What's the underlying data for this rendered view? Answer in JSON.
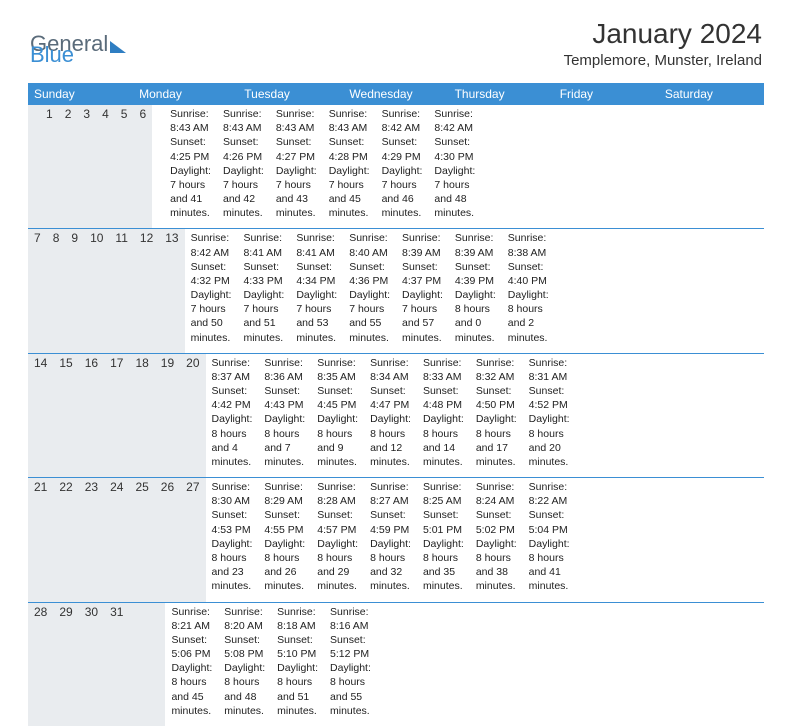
{
  "brand": {
    "part1": "General",
    "part2": "Blue"
  },
  "title": "January 2024",
  "location": "Templemore, Munster, Ireland",
  "colors": {
    "header_bg": "#3b8fd4",
    "header_text": "#ffffff",
    "daynum_bg": "#e9ecef",
    "border": "#3b8fd4",
    "text": "#222222",
    "logo_gray": "#5a6b7a",
    "logo_blue": "#3b8fd4"
  },
  "day_names": [
    "Sunday",
    "Monday",
    "Tuesday",
    "Wednesday",
    "Thursday",
    "Friday",
    "Saturday"
  ],
  "weeks": [
    {
      "nums": [
        "",
        "1",
        "2",
        "3",
        "4",
        "5",
        "6"
      ],
      "cells": [
        {
          "sunrise": "",
          "sunset": "",
          "daylight": ""
        },
        {
          "sunrise": "Sunrise: 8:43 AM",
          "sunset": "Sunset: 4:25 PM",
          "daylight": "Daylight: 7 hours and 41 minutes."
        },
        {
          "sunrise": "Sunrise: 8:43 AM",
          "sunset": "Sunset: 4:26 PM",
          "daylight": "Daylight: 7 hours and 42 minutes."
        },
        {
          "sunrise": "Sunrise: 8:43 AM",
          "sunset": "Sunset: 4:27 PM",
          "daylight": "Daylight: 7 hours and 43 minutes."
        },
        {
          "sunrise": "Sunrise: 8:43 AM",
          "sunset": "Sunset: 4:28 PM",
          "daylight": "Daylight: 7 hours and 45 minutes."
        },
        {
          "sunrise": "Sunrise: 8:42 AM",
          "sunset": "Sunset: 4:29 PM",
          "daylight": "Daylight: 7 hours and 46 minutes."
        },
        {
          "sunrise": "Sunrise: 8:42 AM",
          "sunset": "Sunset: 4:30 PM",
          "daylight": "Daylight: 7 hours and 48 minutes."
        }
      ]
    },
    {
      "nums": [
        "7",
        "8",
        "9",
        "10",
        "11",
        "12",
        "13"
      ],
      "cells": [
        {
          "sunrise": "Sunrise: 8:42 AM",
          "sunset": "Sunset: 4:32 PM",
          "daylight": "Daylight: 7 hours and 50 minutes."
        },
        {
          "sunrise": "Sunrise: 8:41 AM",
          "sunset": "Sunset: 4:33 PM",
          "daylight": "Daylight: 7 hours and 51 minutes."
        },
        {
          "sunrise": "Sunrise: 8:41 AM",
          "sunset": "Sunset: 4:34 PM",
          "daylight": "Daylight: 7 hours and 53 minutes."
        },
        {
          "sunrise": "Sunrise: 8:40 AM",
          "sunset": "Sunset: 4:36 PM",
          "daylight": "Daylight: 7 hours and 55 minutes."
        },
        {
          "sunrise": "Sunrise: 8:39 AM",
          "sunset": "Sunset: 4:37 PM",
          "daylight": "Daylight: 7 hours and 57 minutes."
        },
        {
          "sunrise": "Sunrise: 8:39 AM",
          "sunset": "Sunset: 4:39 PM",
          "daylight": "Daylight: 8 hours and 0 minutes."
        },
        {
          "sunrise": "Sunrise: 8:38 AM",
          "sunset": "Sunset: 4:40 PM",
          "daylight": "Daylight: 8 hours and 2 minutes."
        }
      ]
    },
    {
      "nums": [
        "14",
        "15",
        "16",
        "17",
        "18",
        "19",
        "20"
      ],
      "cells": [
        {
          "sunrise": "Sunrise: 8:37 AM",
          "sunset": "Sunset: 4:42 PM",
          "daylight": "Daylight: 8 hours and 4 minutes."
        },
        {
          "sunrise": "Sunrise: 8:36 AM",
          "sunset": "Sunset: 4:43 PM",
          "daylight": "Daylight: 8 hours and 7 minutes."
        },
        {
          "sunrise": "Sunrise: 8:35 AM",
          "sunset": "Sunset: 4:45 PM",
          "daylight": "Daylight: 8 hours and 9 minutes."
        },
        {
          "sunrise": "Sunrise: 8:34 AM",
          "sunset": "Sunset: 4:47 PM",
          "daylight": "Daylight: 8 hours and 12 minutes."
        },
        {
          "sunrise": "Sunrise: 8:33 AM",
          "sunset": "Sunset: 4:48 PM",
          "daylight": "Daylight: 8 hours and 14 minutes."
        },
        {
          "sunrise": "Sunrise: 8:32 AM",
          "sunset": "Sunset: 4:50 PM",
          "daylight": "Daylight: 8 hours and 17 minutes."
        },
        {
          "sunrise": "Sunrise: 8:31 AM",
          "sunset": "Sunset: 4:52 PM",
          "daylight": "Daylight: 8 hours and 20 minutes."
        }
      ]
    },
    {
      "nums": [
        "21",
        "22",
        "23",
        "24",
        "25",
        "26",
        "27"
      ],
      "cells": [
        {
          "sunrise": "Sunrise: 8:30 AM",
          "sunset": "Sunset: 4:53 PM",
          "daylight": "Daylight: 8 hours and 23 minutes."
        },
        {
          "sunrise": "Sunrise: 8:29 AM",
          "sunset": "Sunset: 4:55 PM",
          "daylight": "Daylight: 8 hours and 26 minutes."
        },
        {
          "sunrise": "Sunrise: 8:28 AM",
          "sunset": "Sunset: 4:57 PM",
          "daylight": "Daylight: 8 hours and 29 minutes."
        },
        {
          "sunrise": "Sunrise: 8:27 AM",
          "sunset": "Sunset: 4:59 PM",
          "daylight": "Daylight: 8 hours and 32 minutes."
        },
        {
          "sunrise": "Sunrise: 8:25 AM",
          "sunset": "Sunset: 5:01 PM",
          "daylight": "Daylight: 8 hours and 35 minutes."
        },
        {
          "sunrise": "Sunrise: 8:24 AM",
          "sunset": "Sunset: 5:02 PM",
          "daylight": "Daylight: 8 hours and 38 minutes."
        },
        {
          "sunrise": "Sunrise: 8:22 AM",
          "sunset": "Sunset: 5:04 PM",
          "daylight": "Daylight: 8 hours and 41 minutes."
        }
      ]
    },
    {
      "nums": [
        "28",
        "29",
        "30",
        "31",
        "",
        "",
        ""
      ],
      "cells": [
        {
          "sunrise": "Sunrise: 8:21 AM",
          "sunset": "Sunset: 5:06 PM",
          "daylight": "Daylight: 8 hours and 45 minutes."
        },
        {
          "sunrise": "Sunrise: 8:20 AM",
          "sunset": "Sunset: 5:08 PM",
          "daylight": "Daylight: 8 hours and 48 minutes."
        },
        {
          "sunrise": "Sunrise: 8:18 AM",
          "sunset": "Sunset: 5:10 PM",
          "daylight": "Daylight: 8 hours and 51 minutes."
        },
        {
          "sunrise": "Sunrise: 8:16 AM",
          "sunset": "Sunset: 5:12 PM",
          "daylight": "Daylight: 8 hours and 55 minutes."
        },
        {
          "sunrise": "",
          "sunset": "",
          "daylight": ""
        },
        {
          "sunrise": "",
          "sunset": "",
          "daylight": ""
        },
        {
          "sunrise": "",
          "sunset": "",
          "daylight": ""
        }
      ]
    }
  ]
}
